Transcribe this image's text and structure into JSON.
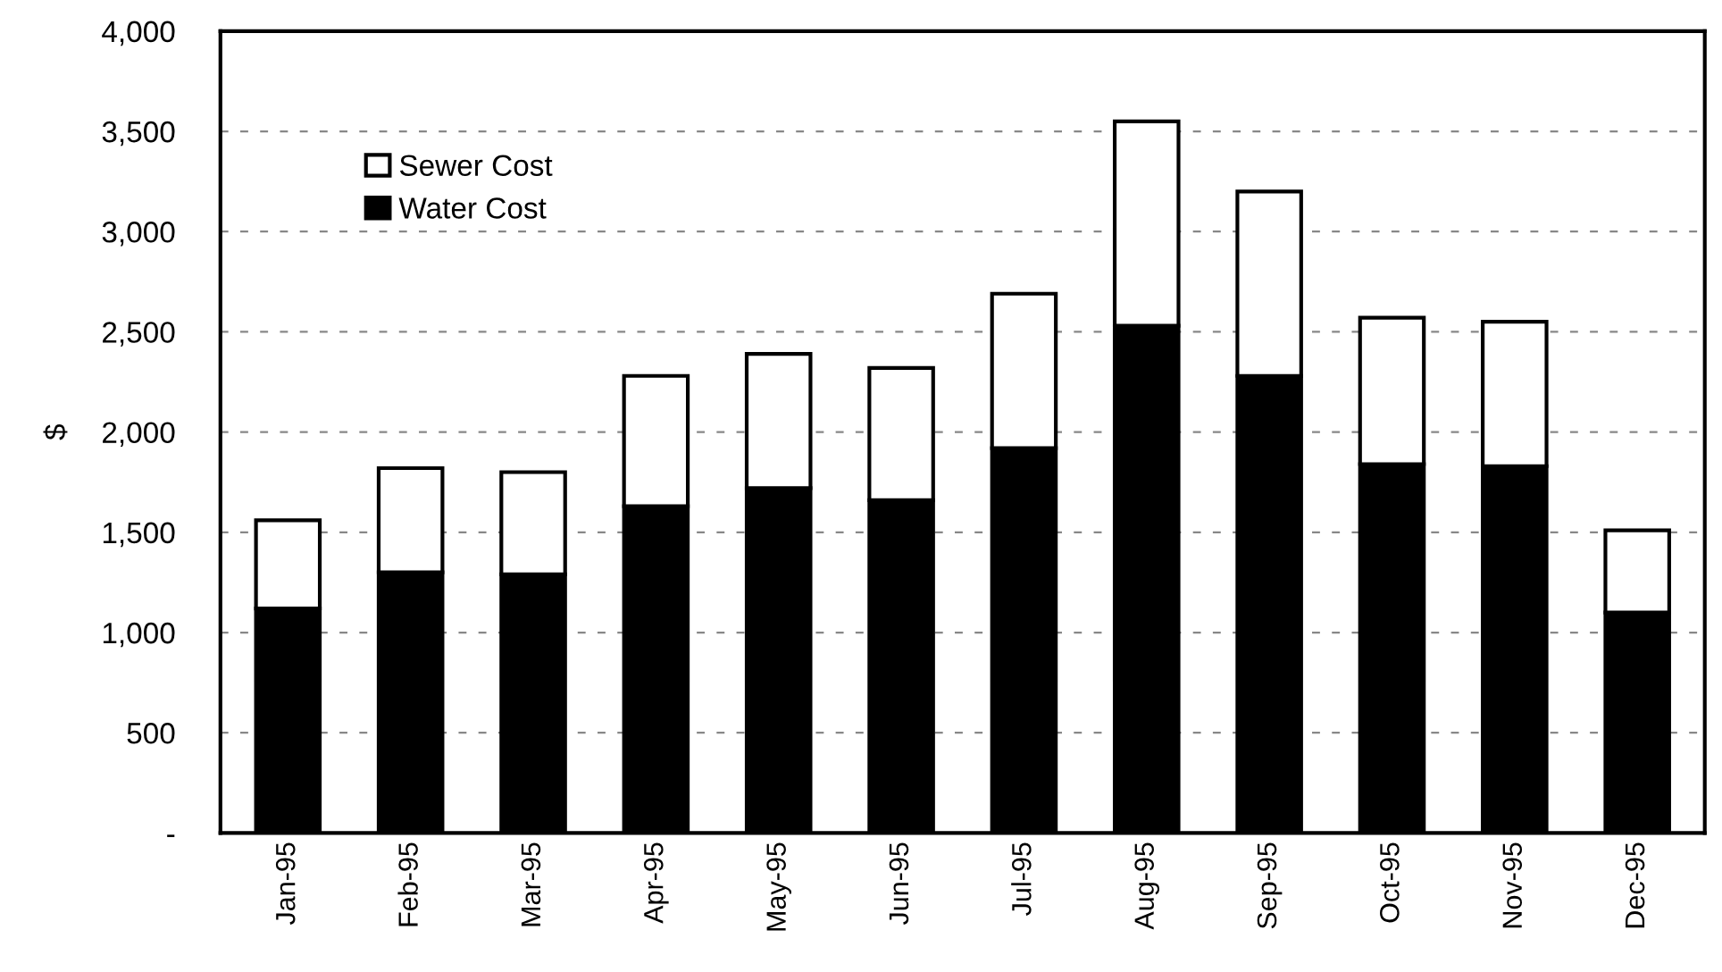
{
  "chart_data": {
    "type": "bar",
    "stacked": true,
    "ylabel": "$",
    "categories": [
      "Jan-95",
      "Feb-95",
      "Mar-95",
      "Apr-95",
      "May-95",
      "Jun-95",
      "Jul-95",
      "Aug-95",
      "Sep-95",
      "Oct-95",
      "Nov-95",
      "Dec-95"
    ],
    "series": [
      {
        "name": "Water Cost",
        "color": "#000000",
        "values": [
          1120,
          1300,
          1290,
          1630,
          1720,
          1660,
          1920,
          2530,
          2280,
          1840,
          1830,
          1100
        ]
      },
      {
        "name": "Sewer Cost",
        "color": "#ffffff",
        "values": [
          440,
          520,
          510,
          650,
          670,
          660,
          770,
          1020,
          920,
          730,
          720,
          410
        ]
      }
    ],
    "ylim": [
      0,
      4000
    ],
    "yticks": [
      {
        "value": 0,
        "label": "-"
      },
      {
        "value": 500,
        "label": "500"
      },
      {
        "value": 1000,
        "label": "1,000"
      },
      {
        "value": 1500,
        "label": "1,500"
      },
      {
        "value": 2000,
        "label": "2,000"
      },
      {
        "value": 2500,
        "label": "2,500"
      },
      {
        "value": 3000,
        "label": "3,000"
      },
      {
        "value": 3500,
        "label": "3,500"
      },
      {
        "value": 4000,
        "label": "4,000"
      }
    ],
    "grid": "y",
    "legend": "top left"
  }
}
